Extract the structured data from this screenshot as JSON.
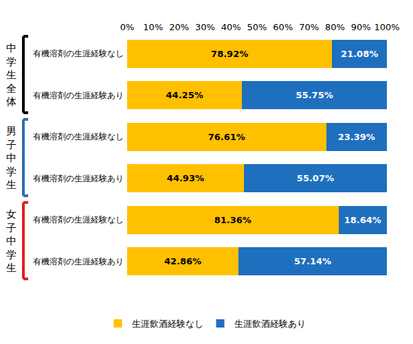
{
  "chart_data": {
    "type": "bar",
    "orientation": "horizontal",
    "stacked": true,
    "data_labels": true,
    "grid": false,
    "legend": "bottom",
    "categories": [
      "有機溶剤の生涯経験なし",
      "有機溶剤の生涯経験あり",
      "有機溶剤の生涯経験なし",
      "有機溶剤の生涯経験あり",
      "有機溶剤の生涯経験なし",
      "有機溶剤の生涯経験あり"
    ],
    "groups": [
      {
        "name": "中学生全体",
        "color": "#000000"
      },
      {
        "name": "男子中学生",
        "color": "#2E6DB4"
      },
      {
        "name": "女子中学生",
        "color": "#E02020"
      }
    ],
    "series": [
      {
        "name": "生涯飲酒経験なし",
        "color": "#FFC000",
        "values": [
          78.92,
          44.25,
          76.61,
          44.93,
          81.36,
          42.86
        ],
        "value_labels": [
          "78.92%",
          "44.25%",
          "76.61%",
          "44.93%",
          "81.36%",
          "42.86%"
        ]
      },
      {
        "name": "生涯飲酒経験あり",
        "color": "#1F6FBF",
        "values": [
          21.08,
          55.75,
          23.39,
          55.07,
          18.64,
          57.14
        ],
        "value_labels": [
          "21.08%",
          "55.75%",
          "23.39%",
          "55.07%",
          "18.64%",
          "57.14%"
        ]
      }
    ],
    "xlim": [
      0,
      100
    ],
    "xticks": [
      {
        "value": 0,
        "label": "0%"
      },
      {
        "value": 10,
        "label": "10%"
      },
      {
        "value": 20,
        "label": "20%"
      },
      {
        "value": 30,
        "label": "30%"
      },
      {
        "value": 40,
        "label": "40%"
      },
      {
        "value": 50,
        "label": "50%"
      },
      {
        "value": 60,
        "label": "60%"
      },
      {
        "value": 70,
        "label": "70%"
      },
      {
        "value": 80,
        "label": "80%"
      },
      {
        "value": 90,
        "label": "90%"
      },
      {
        "value": 100,
        "label": "100%"
      }
    ]
  }
}
